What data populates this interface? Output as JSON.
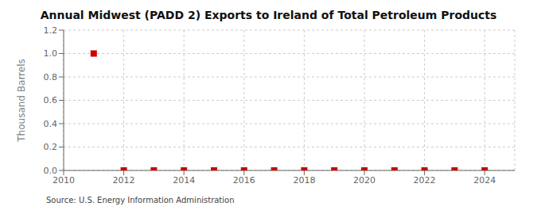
{
  "chart_data": {
    "type": "scatter",
    "title": "Annual Midwest (PADD 2) Exports to Ireland of Total Petroleum Products",
    "ylabel": "Thousand Barrels",
    "source": "Source: U.S. Energy Information Administration",
    "x": [
      2011,
      2012,
      2013,
      2014,
      2015,
      2016,
      2017,
      2018,
      2019,
      2020,
      2021,
      2022,
      2023,
      2024
    ],
    "values": [
      1.0,
      0.0,
      0.0,
      0.0,
      0.0,
      0.0,
      0.0,
      0.0,
      0.0,
      0.0,
      0.0,
      0.0,
      0.0,
      0.0
    ],
    "color": "#cc0000",
    "marker": "square",
    "xlim": [
      2010,
      2025
    ],
    "xticks": [
      2010,
      2012,
      2014,
      2016,
      2018,
      2020,
      2022,
      2024
    ],
    "ylim": [
      0.0,
      1.2
    ],
    "yticks": [
      {
        "value": 0.0,
        "label": "0.0"
      },
      {
        "value": 0.2,
        "label": "0.2"
      },
      {
        "value": 0.4,
        "label": "0.4"
      },
      {
        "value": 0.6,
        "label": "0.6"
      },
      {
        "value": 0.8,
        "label": "0.8"
      },
      {
        "value": 1.0,
        "label": "1.0"
      },
      {
        "value": 1.2,
        "label": "1.2"
      }
    ],
    "grid": true
  }
}
